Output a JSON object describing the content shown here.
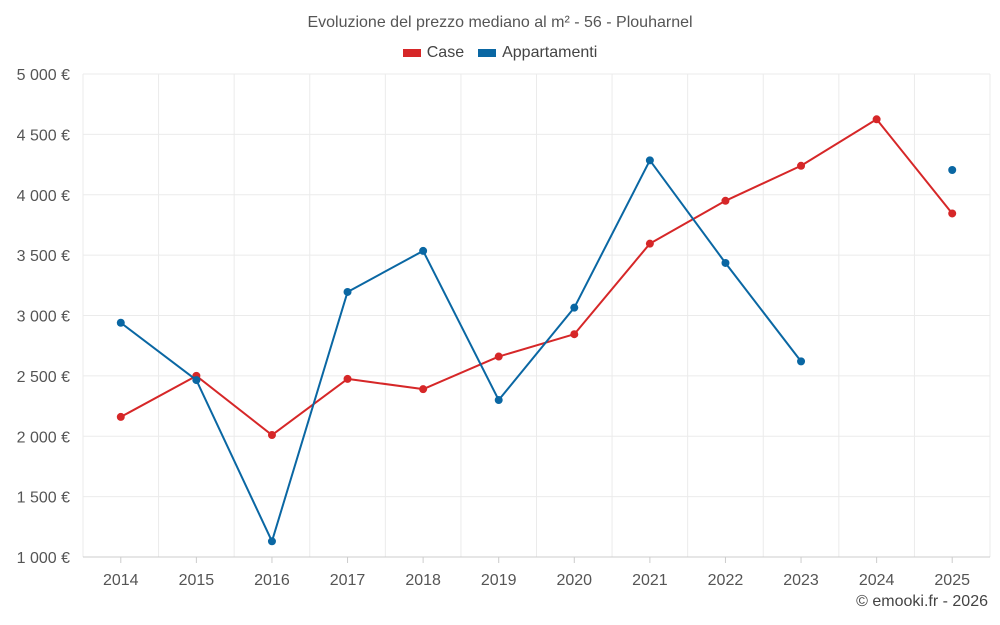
{
  "chart_data": {
    "type": "line",
    "title": "Evoluzione del prezzo mediano al m² - 56 - Plouharnel",
    "categories": [
      "2014",
      "2015",
      "2016",
      "2017",
      "2018",
      "2019",
      "2020",
      "2021",
      "2022",
      "2023",
      "2024",
      "2025"
    ],
    "ylim": [
      1000,
      5000
    ],
    "yticks": [
      1000,
      1500,
      2000,
      2500,
      3000,
      3500,
      4000,
      4500,
      5000
    ],
    "ytick_labels": [
      "1 000 €",
      "1 500 €",
      "2 000 €",
      "2 500 €",
      "3 000 €",
      "3 500 €",
      "4 000 €",
      "4 500 €",
      "5 000 €"
    ],
    "grid": true,
    "legend_position": "top-center",
    "series": [
      {
        "name": "Case",
        "color": "#d62728",
        "values": [
          2160,
          2500,
          2010,
          2475,
          2390,
          2660,
          2845,
          3595,
          3950,
          4240,
          4625,
          3845
        ]
      },
      {
        "name": "Appartamenti",
        "color": "#0a67a3",
        "values": [
          2940,
          2465,
          1130,
          3195,
          3535,
          2300,
          3065,
          4285,
          3435,
          2620,
          null,
          4205
        ]
      }
    ]
  },
  "credit": "© emooki.fr - 2026"
}
